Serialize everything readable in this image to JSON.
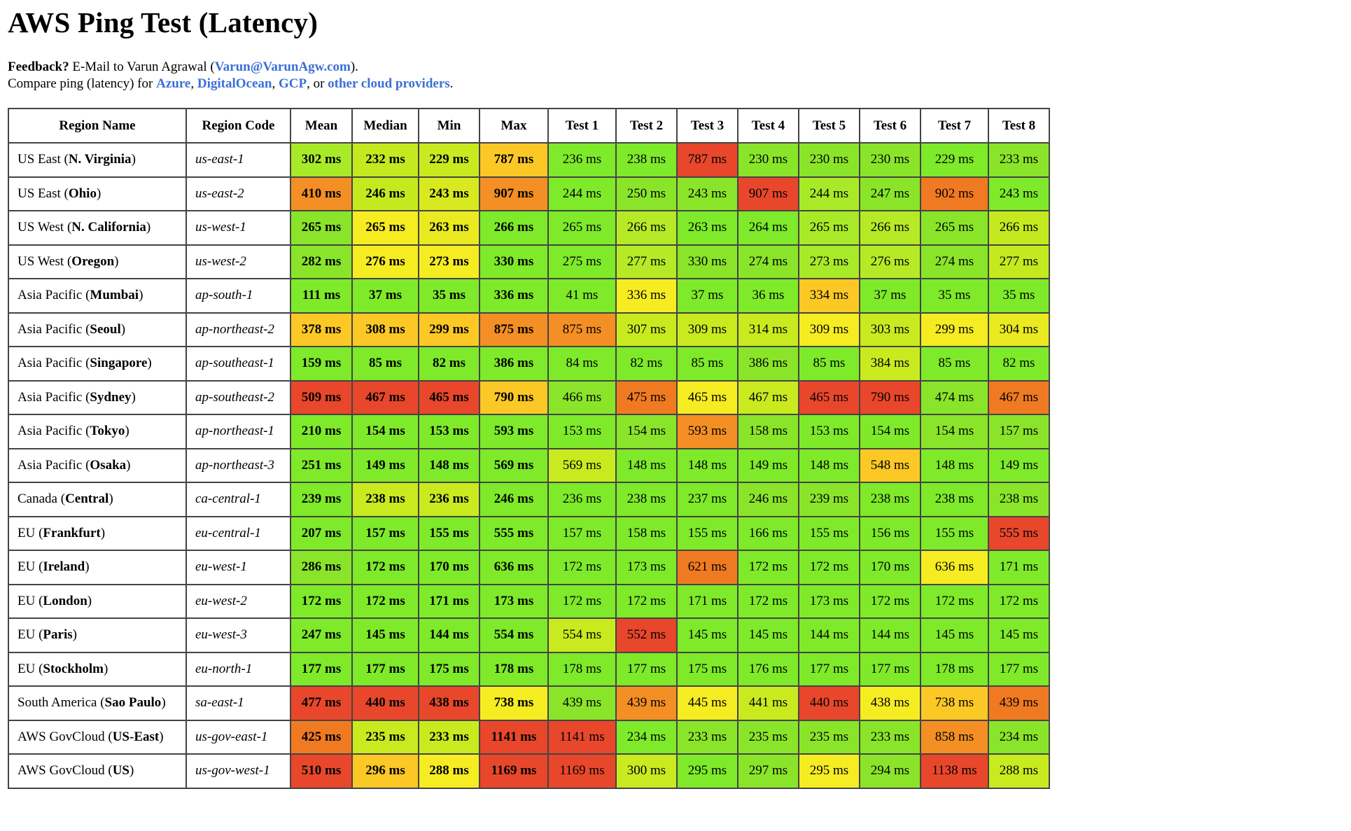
{
  "title": "AWS Ping Test (Latency)",
  "feedback": {
    "label": "Feedback?",
    "text": " E-Mail to Varun Agrawal (",
    "email": "Varun@VarunAgw.com",
    "close": ")."
  },
  "compare": {
    "prefix": "Compare ping (latency) for ",
    "azure": "Azure",
    "sep1": ", ",
    "digitalocean": "DigitalOcean",
    "sep2": ", ",
    "gcp": "GCP",
    "sep3": ", or ",
    "others": "other cloud providers",
    "suffix": "."
  },
  "colors": {
    "good": "#62e83c",
    "ok": "#c9ea1f",
    "warn": "#f6ec22",
    "mid": "#fbc826",
    "bad": "#f38f24",
    "worst": "#e8472b",
    "border": "#444444",
    "link": "#3b6fd8"
  },
  "columns": [
    "Region Name",
    "Region Code",
    "Mean",
    "Median",
    "Min",
    "Max",
    "Test 1",
    "Test 2",
    "Test 3",
    "Test 4",
    "Test 5",
    "Test 6",
    "Test 7",
    "Test 8"
  ],
  "rows": [
    {
      "prefix": "US East (",
      "name": "N. Virginia",
      "suffix": ")",
      "code": "us-east-1",
      "cells": [
        [
          "302 ms",
          "#a8ea28"
        ],
        [
          "232 ms",
          "#c4ea1f"
        ],
        [
          "229 ms",
          "#c9ea1f"
        ],
        [
          "787 ms",
          "#fbc826"
        ],
        [
          "236 ms",
          "#7eea2a"
        ],
        [
          "238 ms",
          "#7eea2a"
        ],
        [
          "787 ms",
          "#e8472b"
        ],
        [
          "230 ms",
          "#8ae52a"
        ],
        [
          "230 ms",
          "#8ae52a"
        ],
        [
          "230 ms",
          "#8ae52a"
        ],
        [
          "229 ms",
          "#7eea2a"
        ],
        [
          "233 ms",
          "#8ae52a"
        ]
      ]
    },
    {
      "prefix": "US East (",
      "name": "Ohio",
      "suffix": ")",
      "code": "us-east-2",
      "cells": [
        [
          "410 ms",
          "#f38f24"
        ],
        [
          "246 ms",
          "#c4ea1f"
        ],
        [
          "243 ms",
          "#d8ea1f"
        ],
        [
          "907 ms",
          "#f38f24"
        ],
        [
          "244 ms",
          "#7eea2a"
        ],
        [
          "250 ms",
          "#8ae52a"
        ],
        [
          "243 ms",
          "#8ae52a"
        ],
        [
          "907 ms",
          "#e8472b"
        ],
        [
          "244 ms",
          "#a8ea28"
        ],
        [
          "247 ms",
          "#8ae52a"
        ],
        [
          "902 ms",
          "#f07a22"
        ],
        [
          "243 ms",
          "#7eea2a"
        ]
      ]
    },
    {
      "prefix": "US West (",
      "name": "N. California",
      "suffix": ")",
      "code": "us-west-1",
      "cells": [
        [
          "265 ms",
          "#8ae52a"
        ],
        [
          "265 ms",
          "#f6ec22"
        ],
        [
          "263 ms",
          "#e9ea1f"
        ],
        [
          "266 ms",
          "#7eea2a"
        ],
        [
          "265 ms",
          "#7eea2a"
        ],
        [
          "266 ms",
          "#b6ea26"
        ],
        [
          "263 ms",
          "#7eea2a"
        ],
        [
          "264 ms",
          "#7eea2a"
        ],
        [
          "265 ms",
          "#a8ea28"
        ],
        [
          "266 ms",
          "#b6ea26"
        ],
        [
          "265 ms",
          "#8ae52a"
        ],
        [
          "266 ms",
          "#c4ea1f"
        ]
      ]
    },
    {
      "prefix": "US West (",
      "name": "Oregon",
      "suffix": ")",
      "code": "us-west-2",
      "cells": [
        [
          "282 ms",
          "#8ae52a"
        ],
        [
          "276 ms",
          "#f6ec22"
        ],
        [
          "273 ms",
          "#f6ec22"
        ],
        [
          "330 ms",
          "#7eea2a"
        ],
        [
          "275 ms",
          "#7eea2a"
        ],
        [
          "277 ms",
          "#b6ea26"
        ],
        [
          "330 ms",
          "#8ae52a"
        ],
        [
          "274 ms",
          "#8ae52a"
        ],
        [
          "273 ms",
          "#a8ea28"
        ],
        [
          "276 ms",
          "#b6ea26"
        ],
        [
          "274 ms",
          "#8ae52a"
        ],
        [
          "277 ms",
          "#c4ea1f"
        ]
      ]
    },
    {
      "prefix": "Asia Pacific (",
      "name": "Mumbai",
      "suffix": ")",
      "code": "ap-south-1",
      "cells": [
        [
          "111 ms",
          "#7eea2a"
        ],
        [
          "37 ms",
          "#7eea2a"
        ],
        [
          "35 ms",
          "#7eea2a"
        ],
        [
          "336 ms",
          "#7eea2a"
        ],
        [
          "41 ms",
          "#7eea2a"
        ],
        [
          "336 ms",
          "#f6ec22"
        ],
        [
          "37 ms",
          "#7eea2a"
        ],
        [
          "36 ms",
          "#7eea2a"
        ],
        [
          "334 ms",
          "#fbc826"
        ],
        [
          "37 ms",
          "#7eea2a"
        ],
        [
          "35 ms",
          "#7eea2a"
        ],
        [
          "35 ms",
          "#7eea2a"
        ]
      ]
    },
    {
      "prefix": "Asia Pacific (",
      "name": "Seoul",
      "suffix": ")",
      "code": "ap-northeast-2",
      "cells": [
        [
          "378 ms",
          "#fbc826"
        ],
        [
          "308 ms",
          "#fbc826"
        ],
        [
          "299 ms",
          "#fbc826"
        ],
        [
          "875 ms",
          "#f38f24"
        ],
        [
          "875 ms",
          "#f38f24"
        ],
        [
          "307 ms",
          "#c9ea1f"
        ],
        [
          "309 ms",
          "#c9ea1f"
        ],
        [
          "314 ms",
          "#c9ea1f"
        ],
        [
          "309 ms",
          "#f6ec22"
        ],
        [
          "303 ms",
          "#c9ea1f"
        ],
        [
          "299 ms",
          "#f6ec22"
        ],
        [
          "304 ms",
          "#e9ea1f"
        ]
      ]
    },
    {
      "prefix": "Asia Pacific (",
      "name": "Singapore",
      "suffix": ")",
      "code": "ap-southeast-1",
      "cells": [
        [
          "159 ms",
          "#7eea2a"
        ],
        [
          "85 ms",
          "#7eea2a"
        ],
        [
          "82 ms",
          "#7eea2a"
        ],
        [
          "386 ms",
          "#7eea2a"
        ],
        [
          "84 ms",
          "#7eea2a"
        ],
        [
          "82 ms",
          "#7eea2a"
        ],
        [
          "85 ms",
          "#7eea2a"
        ],
        [
          "386 ms",
          "#8ae52a"
        ],
        [
          "85 ms",
          "#7eea2a"
        ],
        [
          "384 ms",
          "#c9ea1f"
        ],
        [
          "85 ms",
          "#7eea2a"
        ],
        [
          "82 ms",
          "#7eea2a"
        ]
      ]
    },
    {
      "prefix": "Asia Pacific (",
      "name": "Sydney",
      "suffix": ")",
      "code": "ap-southeast-2",
      "cells": [
        [
          "509 ms",
          "#e8472b"
        ],
        [
          "467 ms",
          "#e8472b"
        ],
        [
          "465 ms",
          "#e8472b"
        ],
        [
          "790 ms",
          "#fbc826"
        ],
        [
          "466 ms",
          "#8ae52a"
        ],
        [
          "475 ms",
          "#f07a22"
        ],
        [
          "465 ms",
          "#f6ec22"
        ],
        [
          "467 ms",
          "#c9ea1f"
        ],
        [
          "465 ms",
          "#e8472b"
        ],
        [
          "790 ms",
          "#e8472b"
        ],
        [
          "474 ms",
          "#8ae52a"
        ],
        [
          "467 ms",
          "#f07a22"
        ]
      ]
    },
    {
      "prefix": "Asia Pacific (",
      "name": "Tokyo",
      "suffix": ")",
      "code": "ap-northeast-1",
      "cells": [
        [
          "210 ms",
          "#7eea2a"
        ],
        [
          "154 ms",
          "#7eea2a"
        ],
        [
          "153 ms",
          "#7eea2a"
        ],
        [
          "593 ms",
          "#7eea2a"
        ],
        [
          "153 ms",
          "#7eea2a"
        ],
        [
          "154 ms",
          "#8ae52a"
        ],
        [
          "593 ms",
          "#f38f24"
        ],
        [
          "158 ms",
          "#8ae52a"
        ],
        [
          "153 ms",
          "#7eea2a"
        ],
        [
          "154 ms",
          "#7eea2a"
        ],
        [
          "154 ms",
          "#8ae52a"
        ],
        [
          "157 ms",
          "#8ae52a"
        ]
      ]
    },
    {
      "prefix": "Asia Pacific (",
      "name": "Osaka",
      "suffix": ")",
      "code": "ap-northeast-3",
      "cells": [
        [
          "251 ms",
          "#7eea2a"
        ],
        [
          "149 ms",
          "#7eea2a"
        ],
        [
          "148 ms",
          "#7eea2a"
        ],
        [
          "569 ms",
          "#7eea2a"
        ],
        [
          "569 ms",
          "#c9ea1f"
        ],
        [
          "148 ms",
          "#7eea2a"
        ],
        [
          "148 ms",
          "#7eea2a"
        ],
        [
          "149 ms",
          "#7eea2a"
        ],
        [
          "148 ms",
          "#7eea2a"
        ],
        [
          "548 ms",
          "#fbc826"
        ],
        [
          "148 ms",
          "#7eea2a"
        ],
        [
          "149 ms",
          "#7eea2a"
        ]
      ]
    },
    {
      "prefix": "Canada (",
      "name": "Central",
      "suffix": ")",
      "code": "ca-central-1",
      "cells": [
        [
          "239 ms",
          "#7eea2a"
        ],
        [
          "238 ms",
          "#c9ea1f"
        ],
        [
          "236 ms",
          "#c9ea1f"
        ],
        [
          "246 ms",
          "#7eea2a"
        ],
        [
          "236 ms",
          "#7eea2a"
        ],
        [
          "238 ms",
          "#7eea2a"
        ],
        [
          "237 ms",
          "#7eea2a"
        ],
        [
          "246 ms",
          "#8ae52a"
        ],
        [
          "239 ms",
          "#8ae52a"
        ],
        [
          "238 ms",
          "#7eea2a"
        ],
        [
          "238 ms",
          "#7eea2a"
        ],
        [
          "238 ms",
          "#8ae52a"
        ]
      ]
    },
    {
      "prefix": "EU (",
      "name": "Frankfurt",
      "suffix": ")",
      "code": "eu-central-1",
      "cells": [
        [
          "207 ms",
          "#7eea2a"
        ],
        [
          "157 ms",
          "#7eea2a"
        ],
        [
          "155 ms",
          "#7eea2a"
        ],
        [
          "555 ms",
          "#7eea2a"
        ],
        [
          "157 ms",
          "#7eea2a"
        ],
        [
          "158 ms",
          "#7eea2a"
        ],
        [
          "155 ms",
          "#7eea2a"
        ],
        [
          "166 ms",
          "#7eea2a"
        ],
        [
          "155 ms",
          "#7eea2a"
        ],
        [
          "156 ms",
          "#7eea2a"
        ],
        [
          "155 ms",
          "#7eea2a"
        ],
        [
          "555 ms",
          "#e8472b"
        ]
      ]
    },
    {
      "prefix": "EU (",
      "name": "Ireland",
      "suffix": ")",
      "code": "eu-west-1",
      "cells": [
        [
          "286 ms",
          "#8ae52a"
        ],
        [
          "172 ms",
          "#7eea2a"
        ],
        [
          "170 ms",
          "#7eea2a"
        ],
        [
          "636 ms",
          "#7eea2a"
        ],
        [
          "172 ms",
          "#7eea2a"
        ],
        [
          "173 ms",
          "#7eea2a"
        ],
        [
          "621 ms",
          "#f07a22"
        ],
        [
          "172 ms",
          "#7eea2a"
        ],
        [
          "172 ms",
          "#7eea2a"
        ],
        [
          "170 ms",
          "#7eea2a"
        ],
        [
          "636 ms",
          "#f6ec22"
        ],
        [
          "171 ms",
          "#7eea2a"
        ]
      ]
    },
    {
      "prefix": "EU (",
      "name": "London",
      "suffix": ")",
      "code": "eu-west-2",
      "cells": [
        [
          "172 ms",
          "#7eea2a"
        ],
        [
          "172 ms",
          "#7eea2a"
        ],
        [
          "171 ms",
          "#7eea2a"
        ],
        [
          "173 ms",
          "#7eea2a"
        ],
        [
          "172 ms",
          "#7eea2a"
        ],
        [
          "172 ms",
          "#7eea2a"
        ],
        [
          "171 ms",
          "#7eea2a"
        ],
        [
          "172 ms",
          "#7eea2a"
        ],
        [
          "173 ms",
          "#7eea2a"
        ],
        [
          "172 ms",
          "#7eea2a"
        ],
        [
          "172 ms",
          "#7eea2a"
        ],
        [
          "172 ms",
          "#7eea2a"
        ]
      ]
    },
    {
      "prefix": "EU (",
      "name": "Paris",
      "suffix": ")",
      "code": "eu-west-3",
      "cells": [
        [
          "247 ms",
          "#7eea2a"
        ],
        [
          "145 ms",
          "#7eea2a"
        ],
        [
          "144 ms",
          "#7eea2a"
        ],
        [
          "554 ms",
          "#7eea2a"
        ],
        [
          "554 ms",
          "#c9ea1f"
        ],
        [
          "552 ms",
          "#e8472b"
        ],
        [
          "145 ms",
          "#7eea2a"
        ],
        [
          "145 ms",
          "#7eea2a"
        ],
        [
          "144 ms",
          "#7eea2a"
        ],
        [
          "144 ms",
          "#7eea2a"
        ],
        [
          "145 ms",
          "#7eea2a"
        ],
        [
          "145 ms",
          "#7eea2a"
        ]
      ]
    },
    {
      "prefix": "EU (",
      "name": "Stockholm",
      "suffix": ")",
      "code": "eu-north-1",
      "cells": [
        [
          "177 ms",
          "#7eea2a"
        ],
        [
          "177 ms",
          "#7eea2a"
        ],
        [
          "175 ms",
          "#7eea2a"
        ],
        [
          "178 ms",
          "#7eea2a"
        ],
        [
          "178 ms",
          "#7eea2a"
        ],
        [
          "177 ms",
          "#7eea2a"
        ],
        [
          "175 ms",
          "#7eea2a"
        ],
        [
          "176 ms",
          "#7eea2a"
        ],
        [
          "177 ms",
          "#7eea2a"
        ],
        [
          "177 ms",
          "#7eea2a"
        ],
        [
          "178 ms",
          "#7eea2a"
        ],
        [
          "177 ms",
          "#7eea2a"
        ]
      ]
    },
    {
      "prefix": "South America (",
      "name": "Sao Paulo",
      "suffix": ")",
      "code": "sa-east-1",
      "cells": [
        [
          "477 ms",
          "#e8472b"
        ],
        [
          "440 ms",
          "#e8472b"
        ],
        [
          "438 ms",
          "#e8472b"
        ],
        [
          "738 ms",
          "#f6ec22"
        ],
        [
          "439 ms",
          "#8ae52a"
        ],
        [
          "439 ms",
          "#f38f24"
        ],
        [
          "445 ms",
          "#f6ec22"
        ],
        [
          "441 ms",
          "#c9ea1f"
        ],
        [
          "440 ms",
          "#e8472b"
        ],
        [
          "438 ms",
          "#f6ec22"
        ],
        [
          "738 ms",
          "#fbc826"
        ],
        [
          "439 ms",
          "#f07a22"
        ]
      ]
    },
    {
      "prefix": "AWS GovCloud (",
      "name": "US-East",
      "suffix": ")",
      "code": "us-gov-east-1",
      "cells": [
        [
          "425 ms",
          "#f07a22"
        ],
        [
          "235 ms",
          "#c9ea1f"
        ],
        [
          "233 ms",
          "#c9ea1f"
        ],
        [
          "1141 ms",
          "#e8472b"
        ],
        [
          "1141 ms",
          "#e8472b"
        ],
        [
          "234 ms",
          "#7eea2a"
        ],
        [
          "233 ms",
          "#8ae52a"
        ],
        [
          "235 ms",
          "#8ae52a"
        ],
        [
          "235 ms",
          "#8ae52a"
        ],
        [
          "233 ms",
          "#8ae52a"
        ],
        [
          "858 ms",
          "#f38f24"
        ],
        [
          "234 ms",
          "#8ae52a"
        ]
      ]
    },
    {
      "prefix": "AWS GovCloud (",
      "name": "US",
      "suffix": ")",
      "code": "us-gov-west-1",
      "cells": [
        [
          "510 ms",
          "#e8472b"
        ],
        [
          "296 ms",
          "#fbc826"
        ],
        [
          "288 ms",
          "#f6ec22"
        ],
        [
          "1169 ms",
          "#e8472b"
        ],
        [
          "1169 ms",
          "#e8472b"
        ],
        [
          "300 ms",
          "#c9ea1f"
        ],
        [
          "295 ms",
          "#7eea2a"
        ],
        [
          "297 ms",
          "#8ae52a"
        ],
        [
          "295 ms",
          "#f6ec22"
        ],
        [
          "294 ms",
          "#8ae52a"
        ],
        [
          "1138 ms",
          "#e8472b"
        ],
        [
          "288 ms",
          "#c9ea1f"
        ]
      ]
    }
  ]
}
